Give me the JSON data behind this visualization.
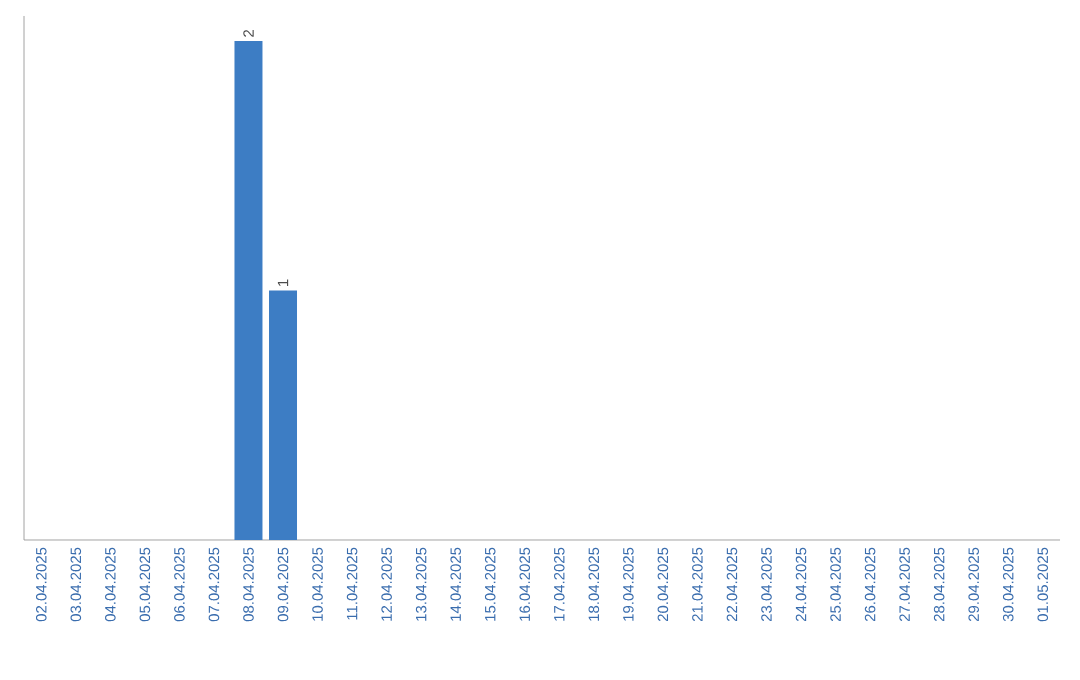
{
  "chart_data": {
    "type": "bar",
    "categories": [
      "02.04.2025",
      "03.04.2025",
      "04.04.2025",
      "05.04.2025",
      "06.04.2025",
      "07.04.2025",
      "08.04.2025",
      "09.04.2025",
      "10.04.2025",
      "11.04.2025",
      "12.04.2025",
      "13.04.2025",
      "14.04.2025",
      "15.04.2025",
      "16.04.2025",
      "17.04.2025",
      "18.04.2025",
      "19.04.2025",
      "20.04.2025",
      "21.04.2025",
      "22.04.2025",
      "23.04.2025",
      "24.04.2025",
      "25.04.2025",
      "26.04.2025",
      "27.04.2025",
      "28.04.2025",
      "29.04.2025",
      "30.04.2025",
      "01.05.2025"
    ],
    "values": [
      0,
      0,
      0,
      0,
      0,
      0,
      2,
      1,
      0,
      0,
      0,
      0,
      0,
      0,
      0,
      0,
      0,
      0,
      0,
      0,
      0,
      0,
      0,
      0,
      0,
      0,
      0,
      0,
      0,
      0
    ],
    "value_labels": [
      null,
      null,
      null,
      null,
      null,
      null,
      "2",
      "1",
      null,
      null,
      null,
      null,
      null,
      null,
      null,
      null,
      null,
      null,
      null,
      null,
      null,
      null,
      null,
      null,
      null,
      null,
      null,
      null,
      null,
      null
    ],
    "color": "#3d7dc4"
  }
}
